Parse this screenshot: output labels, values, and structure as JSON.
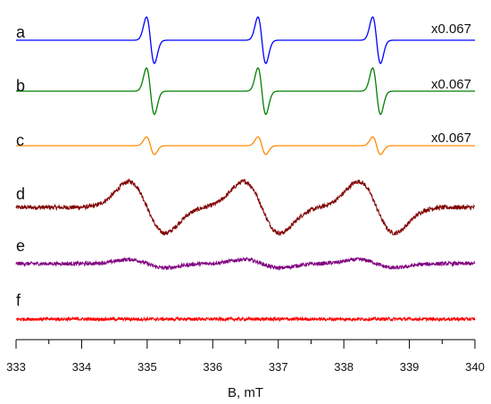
{
  "chart_data": {
    "type": "line",
    "xlabel": "B, mT",
    "ylabel": "",
    "xlim": [
      333,
      340
    ],
    "x_ticks": [
      "333",
      "334",
      "335",
      "336",
      "337",
      "338",
      "339",
      "340"
    ],
    "grid": false,
    "legend": "none",
    "series": [
      {
        "name": "a",
        "color": "#0000ff",
        "scale_label": "x0.067",
        "line_centers_mT": [
          335.05,
          336.75,
          338.5
        ],
        "peak_to_peak_width_mT": 0.12,
        "relative_amplitude": 1.0,
        "noise": 0.0
      },
      {
        "name": "b",
        "color": "#008000",
        "scale_label": "x0.067",
        "line_centers_mT": [
          335.05,
          336.75,
          338.5
        ],
        "peak_to_peak_width_mT": 0.12,
        "relative_amplitude": 1.0,
        "noise": 0.0
      },
      {
        "name": "c",
        "color": "#ff8c00",
        "scale_label": "x0.067",
        "line_centers_mT": [
          335.05,
          336.75,
          338.5
        ],
        "peak_to_peak_width_mT": 0.12,
        "relative_amplitude": 0.38,
        "noise": 0.0
      },
      {
        "name": "d",
        "color": "#800000",
        "scale_label": "",
        "line_centers_mT": [
          335.0,
          336.75,
          338.5
        ],
        "peak_to_peak_width_mT": 0.55,
        "relative_amplitude": 0.8,
        "noise": 0.07
      },
      {
        "name": "e",
        "color": "#800080",
        "scale_label": "",
        "line_centers_mT": [
          335.0,
          336.75,
          338.5
        ],
        "peak_to_peak_width_mT": 0.55,
        "relative_amplitude": 0.13,
        "noise": 0.06
      },
      {
        "name": "f",
        "color": "#ff0000",
        "scale_label": "",
        "line_centers_mT": [],
        "peak_to_peak_width_mT": 0.0,
        "relative_amplitude": 0.0,
        "noise": 0.05
      }
    ]
  }
}
